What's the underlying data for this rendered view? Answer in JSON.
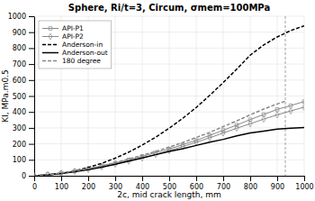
{
  "chart_data": {
    "type": "line",
    "title": "Sphere, Ri/t=3, Circum, σmem=100MPa",
    "x_label": "2c, mid crack length, mm",
    "y_label": "KI, MPa.m0.5",
    "xlim": [
      0,
      1000
    ],
    "ylim": [
      0,
      1000
    ],
    "xticks": [
      0,
      100,
      200,
      300,
      400,
      500,
      600,
      700,
      800,
      900,
      1000
    ],
    "yticks": [
      0,
      100,
      200,
      300,
      400,
      500,
      600,
      700,
      800,
      900,
      1000
    ],
    "grid": true,
    "legend": "upper left",
    "vertical_line_x": 930,
    "series": [
      {
        "name": "API-P1",
        "color": "#888888",
        "marker": "square",
        "line_style": "solid",
        "x": [
          0,
          50,
          100,
          150,
          200,
          250,
          300,
          350,
          400,
          450,
          500,
          550,
          600,
          650,
          700,
          750,
          800,
          850,
          900,
          950,
          1000
        ],
        "values": [
          0,
          8,
          18,
          30,
          45,
          62,
          80,
          100,
          122,
          145,
          168,
          195,
          222,
          253,
          285,
          318,
          352,
          384,
          416,
          440,
          465
        ]
      },
      {
        "name": "API-P2",
        "color": "#888888",
        "marker": "diamond",
        "line_style": "solid",
        "x": [
          0,
          50,
          100,
          150,
          200,
          250,
          300,
          350,
          400,
          450,
          500,
          550,
          600,
          650,
          700,
          750,
          800,
          850,
          900,
          950,
          1000
        ],
        "values": [
          0,
          7,
          16,
          27,
          40,
          56,
          73,
          92,
          112,
          134,
          158,
          183,
          210,
          238,
          268,
          298,
          326,
          355,
          382,
          406,
          430
        ]
      },
      {
        "name": "Anderson-in",
        "color": "#000000",
        "marker": "none",
        "line_style": "dashed",
        "x": [
          0,
          50,
          100,
          150,
          200,
          250,
          300,
          350,
          400,
          450,
          500,
          550,
          600,
          650,
          700,
          750,
          800,
          850,
          900,
          950,
          1000
        ],
        "values": [
          0,
          5,
          15,
          30,
          52,
          78,
          110,
          148,
          192,
          242,
          298,
          360,
          428,
          504,
          584,
          668,
          756,
          820,
          870,
          910,
          940
        ]
      },
      {
        "name": "Anderson-out",
        "color": "#000000",
        "marker": "none",
        "line_style": "solid",
        "x": [
          0,
          50,
          100,
          150,
          200,
          250,
          300,
          350,
          400,
          450,
          500,
          550,
          600,
          650,
          700,
          750,
          800,
          850,
          900,
          950,
          1000
        ],
        "values": [
          0,
          6,
          14,
          25,
          38,
          54,
          72,
          92,
          112,
          132,
          152,
          170,
          190,
          210,
          228,
          250,
          268,
          280,
          292,
          298,
          302
        ]
      },
      {
        "name": "180 degree",
        "color": "#888888",
        "marker": "none",
        "line_style": "dashed",
        "x": [
          0,
          50,
          100,
          150,
          200,
          250,
          300,
          350,
          400,
          450,
          500,
          550,
          600,
          650,
          700,
          750,
          800,
          850,
          900,
          930
        ],
        "values": [
          0,
          7,
          17,
          30,
          45,
          62,
          82,
          105,
          128,
          153,
          180,
          208,
          240,
          272,
          308,
          344,
          382,
          418,
          450,
          468
        ]
      }
    ]
  }
}
